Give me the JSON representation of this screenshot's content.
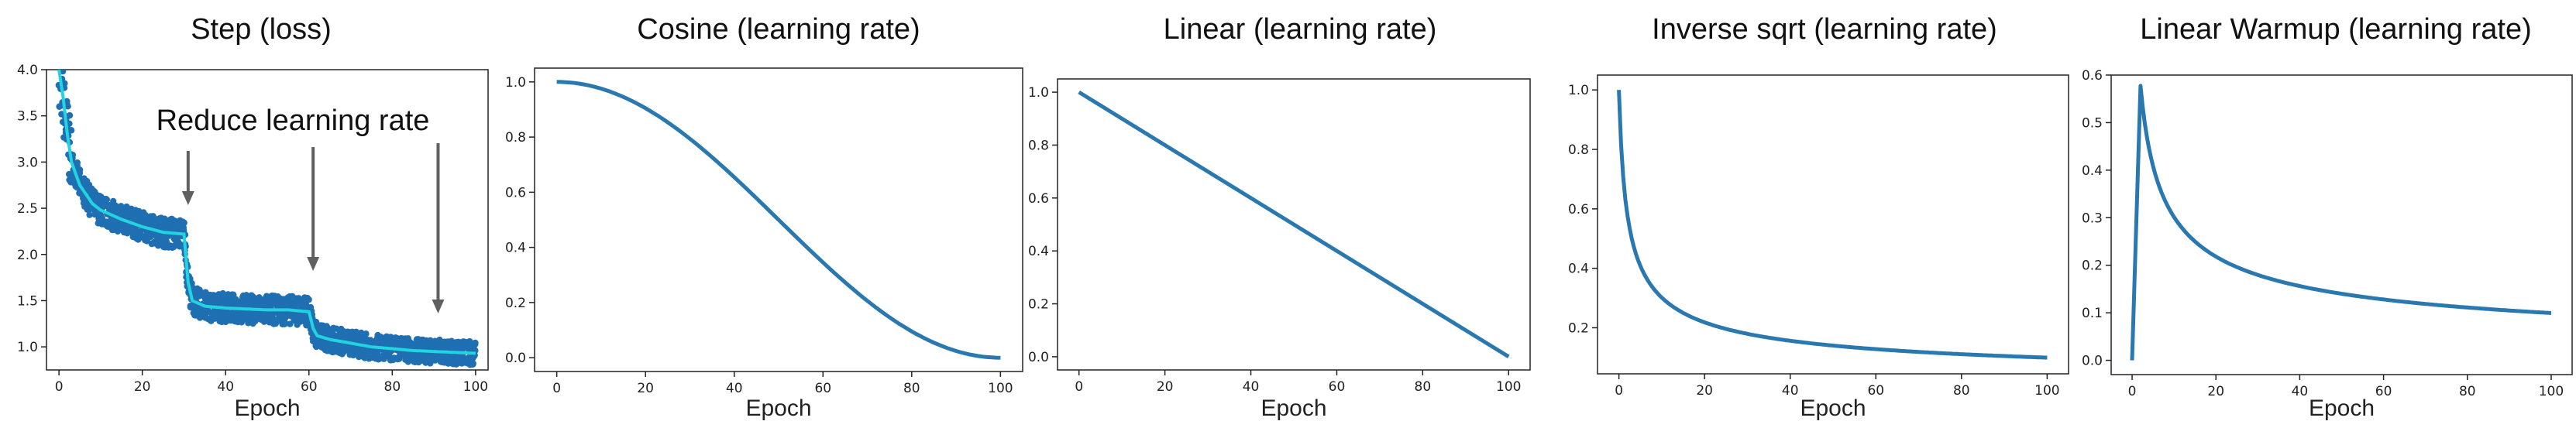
{
  "colors": {
    "line": "#2a78b0",
    "noise": "#1f6fb2",
    "smooth": "#22d3e0",
    "arrow": "#606060"
  },
  "chart_data": [
    {
      "type": "scatter",
      "title": "Step (loss)",
      "xlabel": "Epoch",
      "ylabel": "",
      "xlim": [
        -3,
        103
      ],
      "ylim": [
        0.75,
        4.0
      ],
      "xticks": [
        0,
        20,
        40,
        60,
        80,
        100
      ],
      "yticks": [
        1.0,
        1.5,
        2.0,
        2.5,
        3.0,
        3.5,
        4.0
      ],
      "xtick_labels": [
        "0",
        "20",
        "40",
        "60",
        "80",
        "100"
      ],
      "ytick_labels": [
        "1.0",
        "1.5",
        "2.0",
        "2.5",
        "3.0",
        "3.5",
        "4.0"
      ],
      "grid": false,
      "annotation": "Reduce learning rate",
      "arrow_epochs": [
        31,
        61,
        91
      ],
      "series": [
        {
          "style": "noisy-band",
          "x": [
            0,
            1,
            2,
            3,
            5,
            8,
            10,
            15,
            20,
            25,
            30,
            31,
            32,
            35,
            40,
            45,
            50,
            55,
            60,
            61,
            62,
            65,
            70,
            75,
            80,
            85,
            90,
            95,
            100
          ],
          "y": [
            4.0,
            3.7,
            3.3,
            3.0,
            2.75,
            2.55,
            2.48,
            2.38,
            2.3,
            2.24,
            2.22,
            1.7,
            1.5,
            1.44,
            1.42,
            1.41,
            1.4,
            1.4,
            1.38,
            1.2,
            1.12,
            1.08,
            1.04,
            1.0,
            0.98,
            0.96,
            0.95,
            0.94,
            0.93
          ],
          "band": 0.1
        }
      ]
    },
    {
      "type": "line",
      "title": "Cosine (learning rate)",
      "xlabel": "Epoch",
      "ylabel": "",
      "xlim": [
        -5,
        105
      ],
      "ylim": [
        -0.05,
        1.05
      ],
      "xticks": [
        0,
        20,
        40,
        60,
        80,
        100
      ],
      "yticks": [
        0.0,
        0.2,
        0.4,
        0.6,
        0.8,
        1.0
      ],
      "xtick_labels": [
        "0",
        "20",
        "40",
        "60",
        "80",
        "100"
      ],
      "ytick_labels": [
        "0.0",
        "0.2",
        "0.4",
        "0.6",
        "0.8",
        "1.0"
      ],
      "grid": false,
      "series": [
        {
          "x": [
            0,
            10,
            20,
            30,
            40,
            50,
            60,
            70,
            80,
            90,
            100
          ],
          "y": [
            1.0,
            0.976,
            0.905,
            0.794,
            0.655,
            0.5,
            0.345,
            0.206,
            0.095,
            0.024,
            0.0
          ]
        }
      ]
    },
    {
      "type": "line",
      "title": "Linear (learning rate)",
      "xlabel": "Epoch",
      "ylabel": "",
      "xlim": [
        -5,
        105
      ],
      "ylim": [
        -0.05,
        1.05
      ],
      "xticks": [
        0,
        20,
        40,
        60,
        80,
        100
      ],
      "yticks": [
        0.0,
        0.2,
        0.4,
        0.6,
        0.8,
        1.0
      ],
      "xtick_labels": [
        "0",
        "20",
        "40",
        "60",
        "80",
        "100"
      ],
      "ytick_labels": [
        "0.0",
        "0.2",
        "0.4",
        "0.6",
        "0.8",
        "1.0"
      ],
      "grid": false,
      "series": [
        {
          "x": [
            0,
            100
          ],
          "y": [
            1.0,
            0.0
          ]
        }
      ]
    },
    {
      "type": "line",
      "title": "Inverse sqrt (learning rate)",
      "xlabel": "Epoch",
      "ylabel": "",
      "xlim": [
        -5,
        105
      ],
      "ylim": [
        0.045,
        1.05
      ],
      "xticks": [
        0,
        20,
        40,
        60,
        80,
        100
      ],
      "yticks": [
        0.2,
        0.4,
        0.6,
        0.8,
        1.0
      ],
      "xtick_labels": [
        "0",
        "20",
        "40",
        "60",
        "80",
        "100"
      ],
      "ytick_labels": [
        "0.2",
        "0.4",
        "0.6",
        "0.8",
        "1.0"
      ],
      "grid": false,
      "series": [
        {
          "x": [
            0,
            2,
            4,
            6,
            8,
            10,
            15,
            20,
            30,
            40,
            50,
            60,
            70,
            80,
            90,
            100
          ],
          "y": [
            1.0,
            0.577,
            0.447,
            0.378,
            0.333,
            0.302,
            0.25,
            0.218,
            0.18,
            0.156,
            0.14,
            0.128,
            0.119,
            0.111,
            0.105,
            0.1
          ]
        }
      ]
    },
    {
      "type": "line",
      "title": "Linear Warmup (learning rate)",
      "xlabel": "Epoch",
      "ylabel": "",
      "xlim": [
        -5,
        105
      ],
      "ylim": [
        -0.03,
        0.6
      ],
      "xticks": [
        0,
        20,
        40,
        60,
        80,
        100
      ],
      "yticks": [
        0.0,
        0.1,
        0.2,
        0.3,
        0.4,
        0.5,
        0.6
      ],
      "xtick_labels": [
        "0",
        "20",
        "40",
        "60",
        "80",
        "100"
      ],
      "ytick_labels": [
        "0.0",
        "0.1",
        "0.2",
        "0.3",
        "0.4",
        "0.5",
        "0.6"
      ],
      "grid": false,
      "series": [
        {
          "x": [
            0,
            2,
            4,
            6,
            8,
            10,
            15,
            20,
            30,
            40,
            50,
            60,
            70,
            80,
            90,
            100
          ],
          "y": [
            0.0,
            0.577,
            0.447,
            0.378,
            0.333,
            0.302,
            0.25,
            0.218,
            0.18,
            0.156,
            0.14,
            0.128,
            0.119,
            0.111,
            0.105,
            0.1
          ]
        }
      ]
    }
  ]
}
